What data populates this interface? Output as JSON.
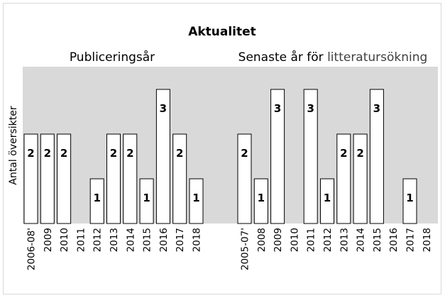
{
  "chart_data": {
    "type": "bar",
    "title": "Aktualitet",
    "ylabel": "Antal översikter",
    "ylim": [
      0,
      3
    ],
    "grid": false,
    "panels": [
      {
        "label": "Publiceringsår",
        "label_parts": [
          "Publiceringsår",
          ""
        ],
        "categories": [
          "2006-08'",
          "2009",
          "2010",
          "2011",
          "2012",
          "2013",
          "2014",
          "2015",
          "2016",
          "2017",
          "2018"
        ],
        "values": [
          2,
          2,
          2,
          0,
          1,
          2,
          2,
          1,
          3,
          2,
          1
        ]
      },
      {
        "label": "Senaste år för litteratursökning",
        "label_parts": [
          "Senaste år för ",
          "litteratursökning"
        ],
        "categories": [
          "2005-07'",
          "2008",
          "2009",
          "2010",
          "2011",
          "2012",
          "2013",
          "2014",
          "2015",
          "2016",
          "2017",
          "2018"
        ],
        "values": [
          2,
          1,
          3,
          0,
          3,
          1,
          2,
          2,
          3,
          0,
          1,
          0
        ]
      }
    ],
    "colors": {
      "plot_area": "#d9d9d9",
      "bar_fill": "#ffffff",
      "bar_stroke": "#000000",
      "frame": "#d9d9d9"
    }
  }
}
